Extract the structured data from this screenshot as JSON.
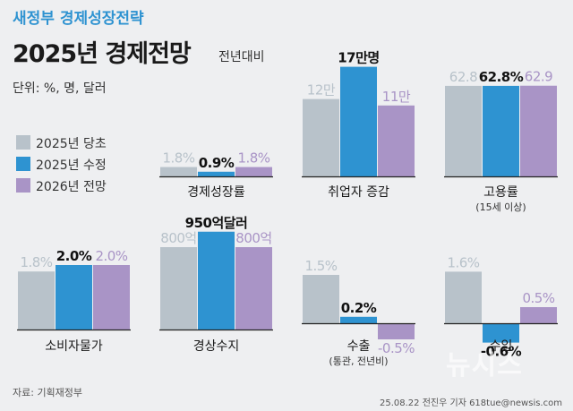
{
  "header": {
    "supertitle": "새정부 경제성장전략",
    "title": "2025년 경제전망",
    "subtitle": "전년대비",
    "unit": "단위: %, 명, 달러"
  },
  "legend": [
    {
      "label": "2025년 당초",
      "color": "#b8c2ca"
    },
    {
      "label": "2025년 수정",
      "color": "#2e93d1"
    },
    {
      "label": "2026년 전망",
      "color": "#a994c6"
    }
  ],
  "footer": {
    "source": "자료: 기획재정부",
    "credit": "25.08.22 전진우 기자 618tue@newsis.com",
    "watermark": "뉴시스"
  },
  "chart_data": [
    {
      "type": "bar",
      "title": "경제성장률",
      "note": "",
      "categories": [
        "2025년 당초",
        "2025년 수정",
        "2026년 전망"
      ],
      "values": [
        1.8,
        0.9,
        1.8
      ],
      "labels": [
        "1.8%",
        "0.9%",
        "1.8%"
      ]
    },
    {
      "type": "bar",
      "title": "취업자 증감",
      "note": "",
      "categories": [
        "2025년 당초",
        "2025년 수정",
        "2026년 전망"
      ],
      "values": [
        120000,
        170000,
        110000
      ],
      "labels": [
        "12만",
        "17만명",
        "11만"
      ]
    },
    {
      "type": "bar",
      "title": "고용률",
      "note": "(15세 이상)",
      "categories": [
        "2025년 당초",
        "2025년 수정",
        "2026년 전망"
      ],
      "values": [
        62.8,
        62.8,
        62.9
      ],
      "labels": [
        "62.8",
        "62.8%",
        "62.9"
      ]
    },
    {
      "type": "bar",
      "title": "소비자물가",
      "note": "",
      "categories": [
        "2025년 당초",
        "2025년 수정",
        "2026년 전망"
      ],
      "values": [
        1.8,
        2.0,
        2.0
      ],
      "labels": [
        "1.8%",
        "2.0%",
        "2.0%"
      ]
    },
    {
      "type": "bar",
      "title": "경상수지",
      "note": "",
      "categories": [
        "2025년 당초",
        "2025년 수정",
        "2026년 전망"
      ],
      "values": [
        800,
        950,
        800
      ],
      "labels": [
        "800억",
        "950억달러",
        "800억"
      ]
    },
    {
      "type": "bar",
      "title": "수출",
      "note": "(통관, 전년비)",
      "categories": [
        "2025년 당초",
        "2025년 수정",
        "2026년 전망"
      ],
      "values": [
        1.5,
        0.2,
        -0.5
      ],
      "labels": [
        "1.5%",
        "0.2%",
        "-0.5%"
      ]
    },
    {
      "type": "bar",
      "title": "수입",
      "note": "",
      "categories": [
        "2025년 당초",
        "2025년 수정",
        "2026년 전망"
      ],
      "values": [
        1.6,
        -0.6,
        0.5
      ],
      "labels": [
        "1.6%",
        "-0.6%",
        "0.5%"
      ]
    }
  ]
}
